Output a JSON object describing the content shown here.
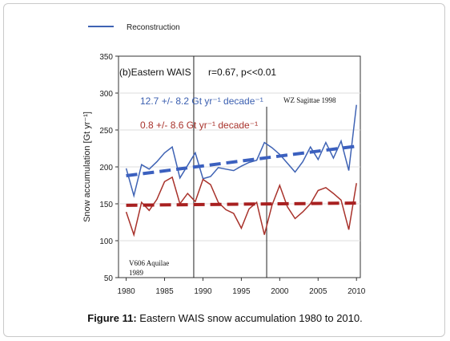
{
  "caption": {
    "label": "Figure 11:",
    "text": " Eastern WAIS snow accumulation 1980 to 2010."
  },
  "chart_data": {
    "type": "line",
    "title": "(b)Eastern WAIS",
    "stats": "r=0.67, p<<0.01",
    "ylabel": "Snow accumulation [Gt yr⁻¹]",
    "xlabel": "",
    "xlim": [
      1979,
      2010.5
    ],
    "ylim": [
      50,
      350
    ],
    "xticks": [
      1980,
      1985,
      1990,
      1995,
      2000,
      2005,
      2010
    ],
    "yticks": [
      50,
      100,
      150,
      200,
      250,
      300,
      350
    ],
    "grid": true,
    "legend": {
      "position": "top-left",
      "entries": [
        "Reconstruction"
      ]
    },
    "colors": {
      "blue": "#3f63b4",
      "red": "#a8322b",
      "trend_blue": "#3b60bf",
      "trend_red": "#a82020"
    },
    "x": [
      1980,
      1981,
      1982,
      1983,
      1984,
      1985,
      1986,
      1987,
      1988,
      1989,
      1990,
      1991,
      1992,
      1993,
      1994,
      1995,
      1996,
      1997,
      1998,
      1999,
      2000,
      2001,
      2002,
      2003,
      2004,
      2005,
      2006,
      2007,
      2008,
      2009,
      2010
    ],
    "series": [
      {
        "name": "Reconstruction",
        "color": "#3f63b4",
        "values": [
          198,
          161,
          203,
          197,
          207,
          219,
          227,
          185,
          202,
          219,
          184,
          187,
          199,
          197,
          195,
          201,
          206,
          209,
          233,
          226,
          217,
          205,
          193,
          207,
          227,
          210,
          233,
          212,
          235,
          195,
          284
        ]
      },
      {
        "color": "#a8322b",
        "values": [
          139,
          108,
          152,
          141,
          156,
          180,
          186,
          150,
          164,
          153,
          183,
          176,
          152,
          142,
          137,
          117,
          143,
          152,
          108,
          148,
          175,
          146,
          130,
          139,
          150,
          168,
          172,
          164,
          155,
          115,
          178
        ]
      }
    ],
    "trends": [
      {
        "color": "#3b60bf",
        "from": [
          1980,
          188
        ],
        "to": [
          2010,
          228
        ]
      },
      {
        "color": "#a82020",
        "from": [
          1980,
          148
        ],
        "to": [
          2010,
          151
        ]
      }
    ],
    "annotations": {
      "blue_trend": "12.7 +/- 8.2 Gt yr⁻¹ decade⁻¹",
      "red_trend": "0.8 +/- 8.6 Gt yr⁻¹ decade⁻¹",
      "wz_label": "WZ Sagittae 1998",
      "wz_year": 1998.3,
      "v_label_1": "V606 Aquilae",
      "v_label_2": "1989",
      "v_year": 1988.8
    }
  }
}
